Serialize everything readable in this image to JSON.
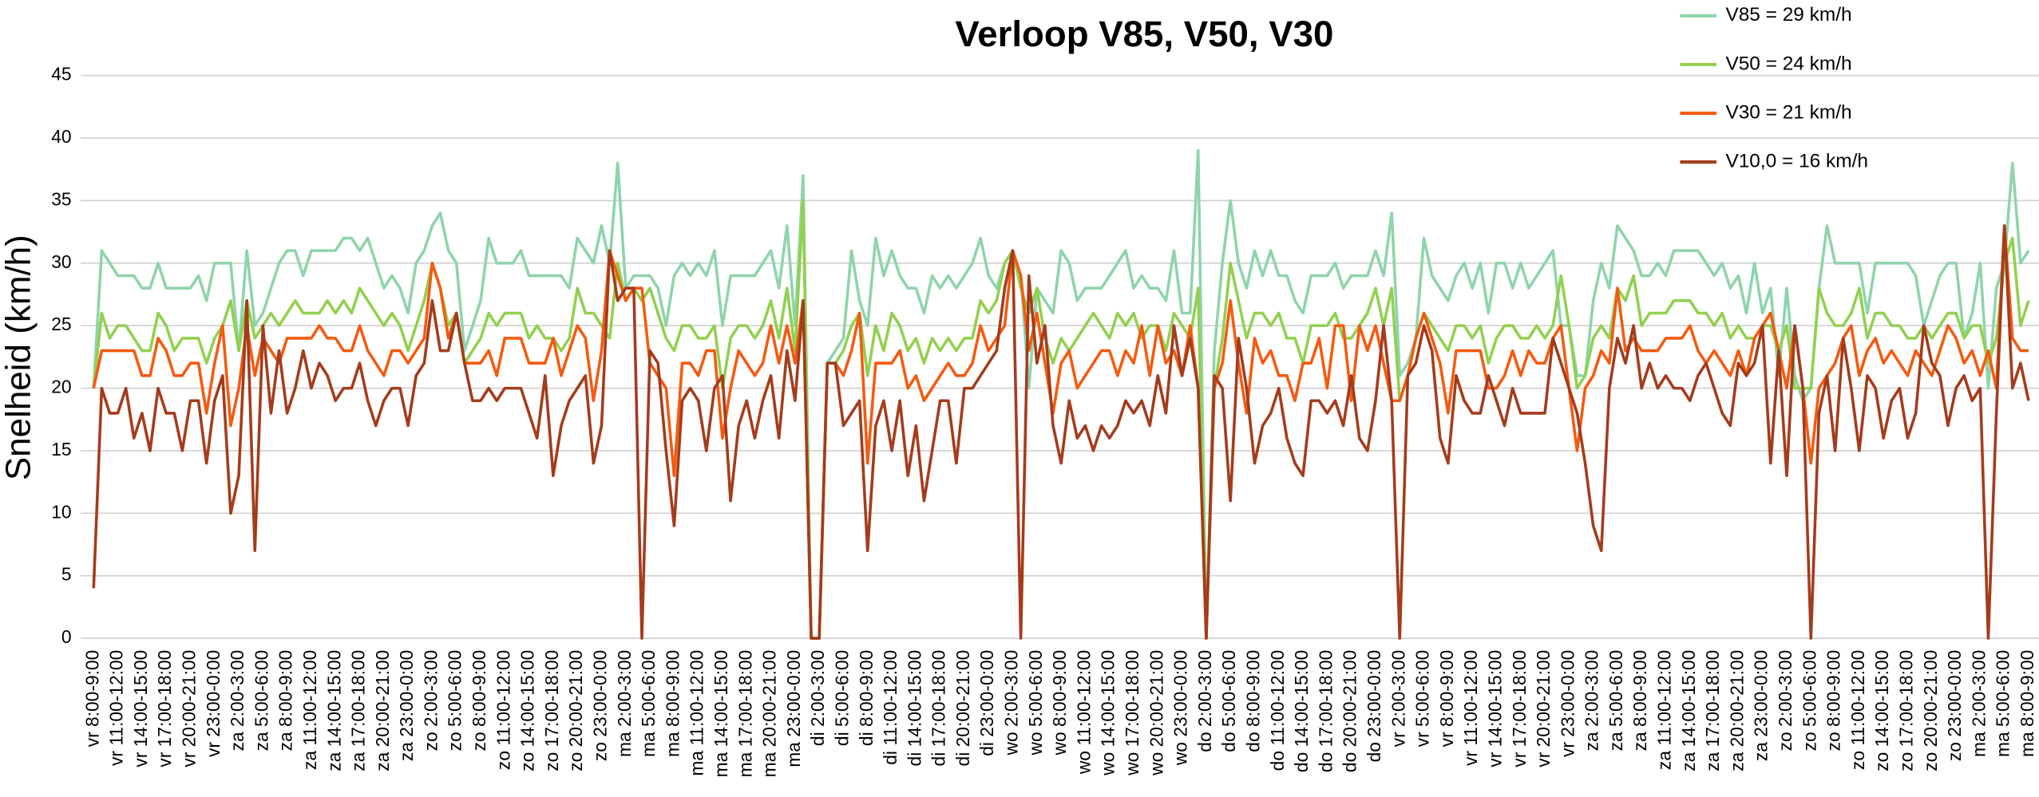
{
  "chart_data": {
    "type": "line",
    "title": "Verloop V85, V50, V30",
    "y_label": "Snelheid (km/h)",
    "categories": [
      "vr 8:00-9:00",
      null,
      null,
      "vr 11:00-12:00",
      null,
      null,
      "vr 14:00-15:00",
      null,
      null,
      "vr 17:00-18:00",
      null,
      null,
      "vr 20:00-21:00",
      null,
      null,
      "vr 23:00-0:00",
      null,
      null,
      "za 2:00-3:00",
      null,
      null,
      "za 5:00-6:00",
      null,
      null,
      "za 8:00-9:00",
      null,
      null,
      "za 11:00-12:00",
      null,
      null,
      "za 14:00-15:00",
      null,
      null,
      "za 17:00-18:00",
      null,
      null,
      "za 20:00-21:00",
      null,
      null,
      "za 23:00-0:00",
      null,
      null,
      "zo 2:00-3:00",
      null,
      null,
      "zo 5:00-6:00",
      null,
      null,
      "zo 8:00-9:00",
      null,
      null,
      "zo 11:00-12:00",
      null,
      null,
      "zo 14:00-15:00",
      null,
      null,
      "zo 17:00-18:00",
      null,
      null,
      "zo 20:00-21:00",
      null,
      null,
      "zo 23:00-0:00",
      null,
      null,
      "ma 2:00-3:00",
      null,
      null,
      "ma 5:00-6:00",
      null,
      null,
      "ma 8:00-9:00",
      null,
      null,
      "ma 11:00-12:00",
      null,
      null,
      "ma 14:00-15:00",
      null,
      null,
      "ma 17:00-18:00",
      null,
      null,
      "ma 20:00-21:00",
      null,
      null,
      "ma 23:00-0:00",
      null,
      null,
      "di 2:00-3:00",
      null,
      null,
      "di 5:00-6:00",
      null,
      null,
      "di 8:00-9:00",
      null,
      null,
      "di 11:00-12:00",
      null,
      null,
      "di 14:00-15:00",
      null,
      null,
      "di 17:00-18:00",
      null,
      null,
      "di 20:00-21:00",
      null,
      null,
      "di 23:00-0:00",
      null,
      null,
      "wo 2:00-3:00",
      null,
      null,
      "wo 5:00-6:00",
      null,
      null,
      "wo 8:00-9:00",
      null,
      null,
      "wo 11:00-12:00",
      null,
      null,
      "wo 14:00-15:00",
      null,
      null,
      "wo 17:00-18:00",
      null,
      null,
      "wo 20:00-21:00",
      null,
      null,
      "wo 23:00-0:00",
      null,
      null,
      "do 2:00-3:00",
      null,
      null,
      "do 5:00-6:00",
      null,
      null,
      "do 8:00-9:00",
      null,
      null,
      "do 11:00-12:00",
      null,
      null,
      "do 14:00-15:00",
      null,
      null,
      "do 17:00-18:00",
      null,
      null,
      "do 20:00-21:00",
      null,
      null,
      "do 23:00-0:00",
      null,
      null,
      "vr 2:00-3:00",
      null,
      null,
      "vr 5:00-6:00",
      null,
      null,
      "vr 8:00-9:00",
      null,
      null,
      "vr 11:00-12:00",
      null,
      null,
      "vr 14:00-15:00",
      null,
      null,
      "vr 17:00-18:00",
      null,
      null,
      "vr 20:00-21:00",
      null,
      null,
      "vr 23:00-0:00",
      null,
      null,
      "za 2:00-3:00",
      null,
      null,
      "za 5:00-6:00",
      null,
      null,
      "za 8:00-9:00",
      null,
      null,
      "za 11:00-12:00",
      null,
      null,
      "za 14:00-15:00",
      null,
      null,
      "za 17:00-18:00",
      null,
      null,
      "za 20:00-21:00",
      null,
      null,
      "za 23:00-0:00",
      null,
      null,
      "zo 2:00-3:00",
      null,
      null,
      "zo 5:00-6:00",
      null,
      null,
      "zo 8:00-9:00",
      null,
      null,
      "zo 11:00-12:00",
      null,
      null,
      "zo 14:00-15:00",
      null,
      null,
      "zo 17:00-18:00",
      null,
      null,
      "zo 20:00-21:00",
      null,
      null,
      "zo 23:00-0:00",
      null,
      null,
      "ma 2:00-3:00",
      null,
      null,
      "ma 5:00-6:00",
      null,
      null,
      "ma 8:00-9:00"
    ],
    "series": [
      {
        "name": "V85 = 29 km/h",
        "color": "#8fd4ab",
        "values": [
          20,
          31,
          30,
          29,
          29,
          29,
          28,
          28,
          30,
          28,
          28,
          28,
          28,
          29,
          27,
          30,
          30,
          30,
          23,
          31,
          25,
          26,
          28,
          30,
          31,
          31,
          29,
          31,
          31,
          31,
          31,
          32,
          32,
          31,
          32,
          30,
          28,
          29,
          28,
          26,
          30,
          31,
          33,
          34,
          31,
          30,
          23,
          25,
          27,
          32,
          30,
          30,
          30,
          31,
          29,
          29,
          29,
          29,
          29,
          28,
          32,
          31,
          30,
          33,
          30,
          38,
          28,
          29,
          29,
          29,
          28,
          25,
          29,
          30,
          29,
          30,
          29,
          31,
          25,
          29,
          29,
          29,
          29,
          30,
          31,
          28,
          33,
          25,
          37,
          0,
          0,
          22,
          23,
          24,
          31,
          27,
          25,
          32,
          29,
          31,
          29,
          28,
          28,
          26,
          29,
          28,
          29,
          28,
          29,
          30,
          32,
          29,
          28,
          30,
          31,
          29,
          20,
          28,
          27,
          26,
          31,
          30,
          27,
          28,
          28,
          28,
          29,
          30,
          31,
          28,
          29,
          28,
          28,
          27,
          31,
          26,
          26,
          39,
          0,
          23,
          30,
          35,
          30,
          28,
          31,
          29,
          31,
          29,
          29,
          27,
          26,
          29,
          29,
          29,
          30,
          28,
          29,
          29,
          29,
          31,
          29,
          34,
          21,
          22,
          24,
          32,
          29,
          28,
          27,
          29,
          30,
          28,
          30,
          26,
          30,
          30,
          28,
          30,
          28,
          29,
          30,
          31,
          25,
          25,
          21,
          21,
          27,
          30,
          28,
          33,
          32,
          31,
          29,
          29,
          30,
          29,
          31,
          31,
          31,
          31,
          30,
          29,
          30,
          28,
          29,
          26,
          30,
          26,
          28,
          21,
          28,
          21,
          19,
          20,
          28,
          33,
          30,
          30,
          30,
          30,
          26,
          30,
          30,
          30,
          30,
          30,
          29,
          25,
          27,
          29,
          30,
          30,
          24,
          26,
          30,
          20,
          28,
          30,
          38,
          30,
          31
        ]
      },
      {
        "name": "V50 = 24 km/h",
        "color": "#92d050",
        "values": [
          20,
          26,
          24,
          25,
          25,
          24,
          23,
          23,
          26,
          25,
          23,
          24,
          24,
          24,
          22,
          24,
          25,
          27,
          23,
          27,
          24,
          25,
          26,
          25,
          26,
          27,
          26,
          26,
          26,
          27,
          26,
          27,
          26,
          28,
          27,
          26,
          25,
          26,
          25,
          23,
          25,
          27,
          30,
          28,
          25,
          26,
          22,
          23,
          24,
          26,
          25,
          26,
          26,
          26,
          24,
          25,
          24,
          24,
          23,
          24,
          28,
          26,
          26,
          25,
          24,
          30,
          27,
          28,
          27,
          28,
          26,
          24,
          23,
          25,
          25,
          24,
          24,
          25,
          20,
          24,
          25,
          25,
          24,
          25,
          27,
          24,
          28,
          23,
          35,
          0,
          0,
          22,
          22,
          23,
          25,
          26,
          21,
          25,
          23,
          26,
          25,
          23,
          24,
          22,
          24,
          23,
          24,
          23,
          24,
          24,
          27,
          26,
          27,
          30,
          31,
          28,
          26,
          28,
          24,
          22,
          24,
          23,
          24,
          25,
          26,
          25,
          24,
          26,
          25,
          26,
          24,
          25,
          25,
          23,
          26,
          25,
          24,
          28,
          0,
          20,
          24,
          30,
          27,
          24,
          26,
          26,
          25,
          26,
          24,
          24,
          22,
          25,
          25,
          25,
          26,
          24,
          24,
          25,
          26,
          28,
          25,
          28,
          19,
          21,
          24,
          26,
          25,
          24,
          23,
          25,
          25,
          24,
          25,
          22,
          24,
          25,
          25,
          24,
          24,
          25,
          24,
          25,
          29,
          25,
          20,
          21,
          24,
          25,
          24,
          28,
          27,
          29,
          25,
          26,
          26,
          26,
          27,
          27,
          27,
          26,
          26,
          25,
          26,
          24,
          25,
          24,
          24,
          25,
          25,
          23,
          25,
          20,
          20,
          20,
          28,
          26,
          25,
          25,
          26,
          28,
          24,
          26,
          26,
          25,
          25,
          24,
          24,
          25,
          24,
          25,
          26,
          26,
          24,
          25,
          25,
          22,
          24,
          30,
          32,
          25,
          27
        ]
      },
      {
        "name": "V30 = 21 km/h",
        "color": "#f55a10",
        "values": [
          20,
          23,
          23,
          23,
          23,
          23,
          21,
          21,
          24,
          23,
          21,
          21,
          22,
          22,
          18,
          22,
          25,
          17,
          20,
          25,
          21,
          24,
          23,
          22,
          24,
          24,
          24,
          24,
          25,
          24,
          24,
          23,
          23,
          25,
          23,
          22,
          21,
          23,
          23,
          22,
          23,
          24,
          30,
          28,
          24,
          26,
          22,
          22,
          22,
          23,
          21,
          24,
          24,
          24,
          22,
          22,
          22,
          24,
          21,
          23,
          25,
          24,
          19,
          23,
          31,
          29,
          27,
          28,
          28,
          22,
          21,
          20,
          13,
          22,
          22,
          21,
          23,
          23,
          16,
          20,
          23,
          22,
          21,
          22,
          25,
          22,
          25,
          22,
          27,
          0,
          0,
          22,
          22,
          21,
          23,
          26,
          14,
          22,
          22,
          22,
          23,
          20,
          21,
          19,
          20,
          21,
          22,
          21,
          21,
          22,
          25,
          23,
          24,
          25,
          31,
          29,
          23,
          26,
          22,
          18,
          22,
          23,
          20,
          21,
          22,
          23,
          23,
          21,
          23,
          22,
          25,
          21,
          25,
          22,
          23,
          21,
          25,
          20,
          0,
          20,
          22,
          27,
          22,
          18,
          24,
          22,
          23,
          21,
          21,
          19,
          22,
          22,
          24,
          20,
          25,
          25,
          19,
          25,
          23,
          25,
          22,
          19,
          19,
          21,
          24,
          26,
          24,
          22,
          18,
          23,
          23,
          23,
          23,
          20,
          20,
          21,
          23,
          21,
          23,
          22,
          22,
          24,
          25,
          20,
          15,
          20,
          21,
          23,
          22,
          28,
          23,
          24,
          23,
          23,
          23,
          24,
          24,
          24,
          25,
          23,
          22,
          23,
          22,
          21,
          23,
          21,
          24,
          25,
          26,
          23,
          20,
          25,
          20,
          14,
          20,
          21,
          22,
          24,
          25,
          21,
          23,
          24,
          22,
          23,
          22,
          21,
          23,
          22,
          21,
          23,
          25,
          24,
          22,
          23,
          21,
          23,
          20,
          33,
          24,
          23,
          23
        ]
      },
      {
        "name": "V10,0 = 16 km/h",
        "color": "#a43c1c",
        "values": [
          4,
          20,
          18,
          18,
          20,
          16,
          18,
          15,
          20,
          18,
          18,
          15,
          19,
          19,
          14,
          19,
          21,
          10,
          13,
          27,
          7,
          25,
          18,
          23,
          18,
          20,
          23,
          20,
          22,
          21,
          19,
          20,
          20,
          22,
          19,
          17,
          19,
          20,
          20,
          17,
          21,
          22,
          27,
          23,
          23,
          26,
          22,
          19,
          19,
          20,
          19,
          20,
          20,
          20,
          18,
          16,
          21,
          13,
          17,
          19,
          20,
          21,
          14,
          17,
          31,
          27,
          28,
          28,
          0,
          23,
          22,
          15,
          9,
          19,
          20,
          19,
          15,
          20,
          21,
          11,
          17,
          19,
          16,
          19,
          21,
          16,
          23,
          19,
          27,
          0,
          0,
          22,
          22,
          17,
          18,
          19,
          7,
          17,
          19,
          15,
          19,
          13,
          17,
          11,
          15,
          19,
          19,
          14,
          20,
          20,
          21,
          22,
          23,
          28,
          31,
          0,
          29,
          22,
          25,
          17,
          14,
          19,
          16,
          17,
          15,
          17,
          16,
          17,
          19,
          18,
          19,
          17,
          21,
          18,
          25,
          21,
          24,
          20,
          0,
          21,
          20,
          11,
          24,
          20,
          14,
          17,
          18,
          20,
          16,
          14,
          13,
          19,
          19,
          18,
          19,
          17,
          21,
          16,
          15,
          19,
          25,
          19,
          0,
          21,
          22,
          25,
          23,
          16,
          14,
          21,
          19,
          18,
          18,
          21,
          19,
          17,
          20,
          18,
          18,
          18,
          18,
          24,
          22,
          20,
          18,
          14,
          9,
          7,
          20,
          24,
          22,
          25,
          20,
          22,
          20,
          21,
          20,
          20,
          19,
          21,
          22,
          20,
          18,
          17,
          22,
          21,
          22,
          25,
          14,
          23,
          13,
          25,
          20,
          0,
          18,
          21,
          15,
          24,
          20,
          15,
          21,
          20,
          16,
          19,
          20,
          16,
          18,
          25,
          22,
          21,
          17,
          20,
          21,
          19,
          20,
          0,
          18,
          33,
          20,
          22,
          19
        ]
      }
    ],
    "ylim": [
      0,
      45
    ],
    "yticks": [
      0,
      5,
      10,
      15,
      20,
      25,
      30,
      35,
      40,
      45
    ],
    "grid": true,
    "legend": "upper right"
  }
}
